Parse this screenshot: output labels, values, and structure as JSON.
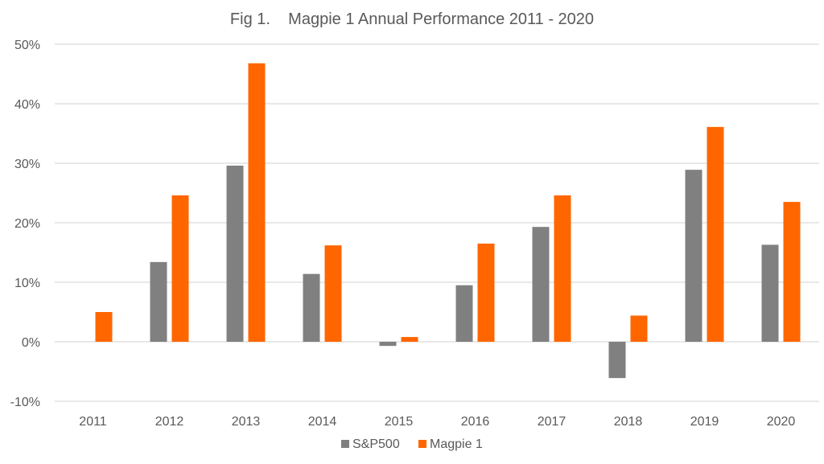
{
  "chart_data": {
    "type": "bar",
    "title": "Fig 1.    Magpie 1 Annual Performance 2011 - 2020",
    "xlabel": "",
    "ylabel": "",
    "categories": [
      "2011",
      "2012",
      "2013",
      "2014",
      "2015",
      "2016",
      "2017",
      "2018",
      "2019",
      "2020"
    ],
    "series": [
      {
        "name": "S&P500",
        "color": "#808080",
        "values": [
          null,
          13.4,
          29.6,
          11.4,
          -0.7,
          9.5,
          19.3,
          -6.1,
          28.9,
          16.3
        ]
      },
      {
        "name": "Magpie 1",
        "color": "#ff6600",
        "values": [
          5.0,
          24.6,
          46.8,
          16.2,
          0.8,
          16.5,
          24.6,
          4.4,
          36.1,
          23.5
        ]
      }
    ],
    "ylim": [
      -10,
      50
    ],
    "yticks": [
      -10,
      0,
      10,
      20,
      30,
      40,
      50
    ],
    "ytick_labels": [
      "-10%",
      "0%",
      "10%",
      "20%",
      "30%",
      "40%",
      "50%"
    ],
    "grid": true,
    "legend": "bottom-center"
  }
}
